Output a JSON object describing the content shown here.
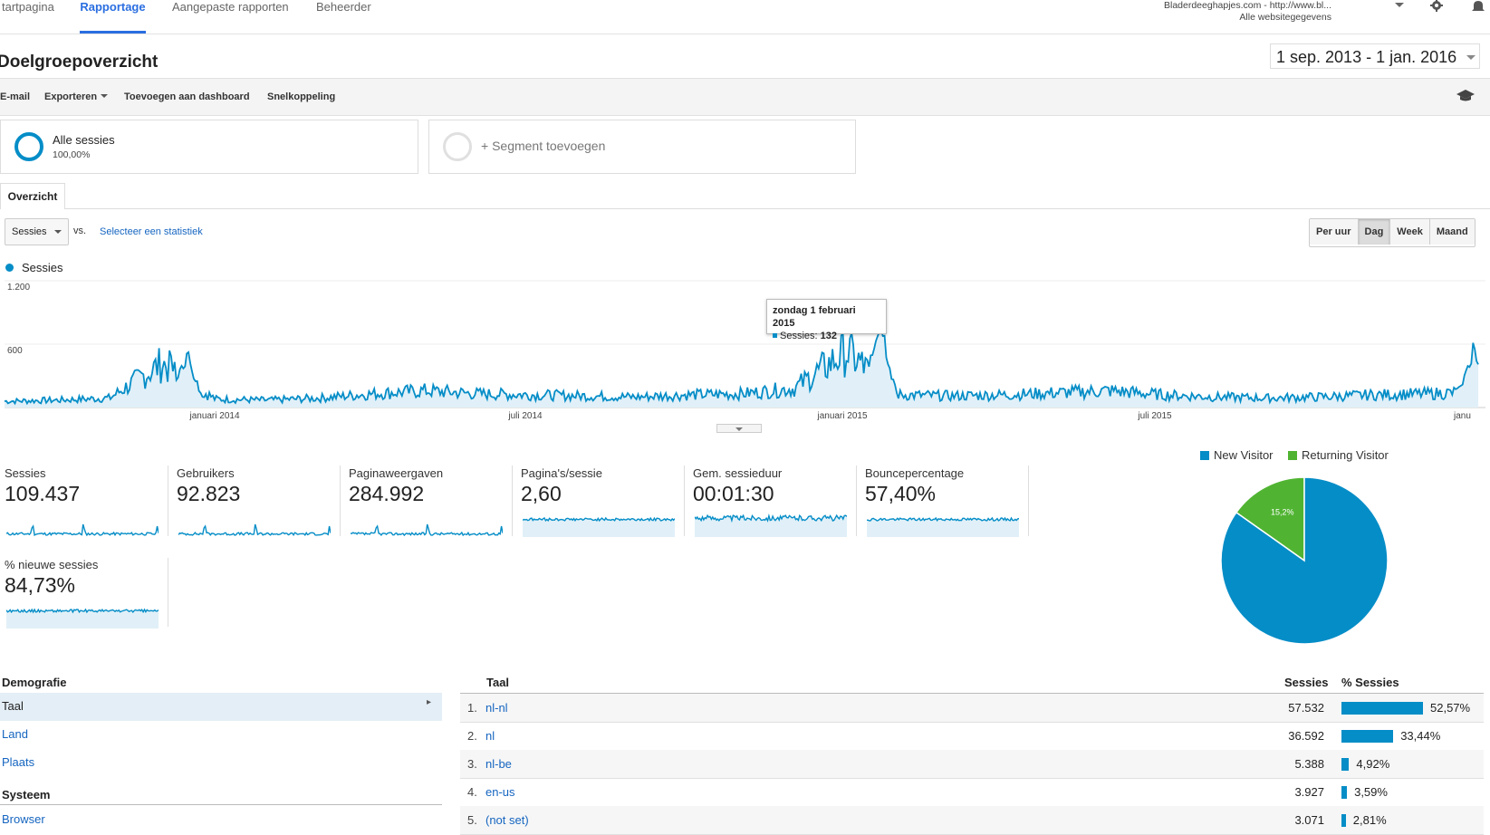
{
  "nav": {
    "tabs": [
      "tartpagina",
      "Rapportage",
      "Aangepaste rapporten",
      "Beheerder"
    ],
    "active": "Rapportage",
    "account_line1": "Bladerdeeghapjes.com - http://www.bl...",
    "account_line2": "Alle websitegegevens",
    "icons": [
      "gear-icon",
      "bell-icon"
    ]
  },
  "page": {
    "title": "Doelgroepoverzicht",
    "date_range": "1 sep. 2013 - 1 jan. 2016"
  },
  "toolbar": {
    "email": "E-mail",
    "export": "Exporteren",
    "add_dashboard": "Toevoegen aan dashboard",
    "shortcut": "Snelkoppeling",
    "icon": "graduation-cap-icon"
  },
  "segments": {
    "active_name": "Alle sessies",
    "active_pct": "100,00%",
    "add_label": "+ Segment toevoegen"
  },
  "tab": "Overzicht",
  "chart_controls": {
    "metric": "Sessies",
    "vs": "vs.",
    "select_metric": "Selecteer een statistiek",
    "granularity": [
      "Per uur",
      "Dag",
      "Week",
      "Maand"
    ],
    "active_granularity": "Dag"
  },
  "colors": {
    "series": "#058dc7",
    "returning": "#50b432",
    "link": "#1565c0"
  },
  "chart_data": {
    "type": "area",
    "legend": "Sessies",
    "ylim": [
      0,
      1200
    ],
    "y_ticks": [
      "1.200",
      "600"
    ],
    "x_ticks": [
      "januari 2014",
      "juli 2014",
      "januari 2015",
      "juli 2015",
      "janu"
    ],
    "series": [
      {
        "name": "Sessies",
        "x": [
          "2013-09",
          "2013-10",
          "2013-11",
          "2013-12",
          "2014-01",
          "2014-02",
          "2014-03",
          "2014-04",
          "2014-05",
          "2014-06",
          "2014-07",
          "2014-08",
          "2014-09",
          "2014-10",
          "2014-11",
          "2014-12",
          "2015-01",
          "2015-02",
          "2015-03",
          "2015-04",
          "2015-05",
          "2015-06",
          "2015-07",
          "2015-08",
          "2015-09",
          "2015-10",
          "2015-11",
          "2015-12",
          "2016-01"
        ],
        "values": [
          60,
          70,
          90,
          420,
          80,
          70,
          90,
          130,
          160,
          130,
          120,
          110,
          100,
          120,
          130,
          180,
          530,
          120,
          110,
          120,
          140,
          160,
          120,
          100,
          90,
          100,
          120,
          130,
          150
        ]
      }
    ],
    "peak_markers": [
      {
        "x": "2013-12-15",
        "value": 600
      },
      {
        "x": "2015-01-20",
        "value": 1000
      },
      {
        "x": "2015-12-28",
        "value": 650
      }
    ],
    "tooltip": {
      "date": "zondag 1 februari 2015",
      "series": "Sessies:",
      "value": "132"
    }
  },
  "metrics": [
    {
      "label": "Sessies",
      "value": "109.437"
    },
    {
      "label": "Gebruikers",
      "value": "92.823"
    },
    {
      "label": "Paginaweergaven",
      "value": "284.992"
    },
    {
      "label": "Pagina's/sessie",
      "value": "2,60"
    },
    {
      "label": "Gem. sessieduur",
      "value": "00:01:30"
    },
    {
      "label": "Bouncepercentage",
      "value": "57,40%"
    },
    {
      "label": "% nieuwe sessies",
      "value": "84,73%"
    }
  ],
  "pie": {
    "legend": [
      "New Visitor",
      "Returning Visitor"
    ],
    "slices": [
      {
        "name": "New Visitor",
        "value": 84.8,
        "label": "84,8%"
      },
      {
        "name": "Returning Visitor",
        "value": 15.2,
        "label": "15,2%"
      }
    ]
  },
  "demografie": {
    "heading": "Demografie",
    "items": [
      "Taal",
      "Land",
      "Plaats"
    ],
    "systeem_heading": "Systeem",
    "systeem_items": [
      "Browser"
    ]
  },
  "table": {
    "headers": {
      "col1": "Taal",
      "col2": "Sessies",
      "col3": "% Sessies"
    },
    "rows": [
      {
        "rank": "1.",
        "lang": "nl-nl",
        "sessions": "57.532",
        "pct": "52,57%",
        "frac": 0.5257
      },
      {
        "rank": "2.",
        "lang": "nl",
        "sessions": "36.592",
        "pct": "33,44%",
        "frac": 0.3344
      },
      {
        "rank": "3.",
        "lang": "nl-be",
        "sessions": "5.388",
        "pct": "4,92%",
        "frac": 0.0492
      },
      {
        "rank": "4.",
        "lang": "en-us",
        "sessions": "3.927",
        "pct": "3,59%",
        "frac": 0.0359
      },
      {
        "rank": "5.",
        "lang": "(not set)",
        "sessions": "3.071",
        "pct": "2,81%",
        "frac": 0.0281
      }
    ]
  }
}
